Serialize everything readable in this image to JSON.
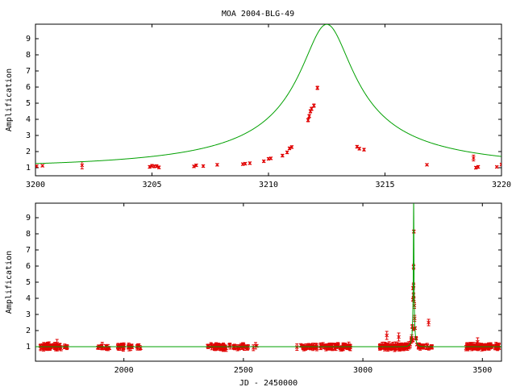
{
  "title": "MOA 2004-BLG-49",
  "colors": {
    "model": "#00a000",
    "data": "#e00000",
    "axes": "#000000"
  },
  "chart_data": [
    {
      "type": "scatter",
      "title": "MOA 2004-BLG-49",
      "xlabel": "",
      "ylabel": "Amplification",
      "xlim": [
        3200,
        3220
      ],
      "ylim": [
        0.5,
        9.9
      ],
      "xticks": [
        3200,
        3205,
        3210,
        3215,
        3220
      ],
      "yticks": [
        1,
        2,
        3,
        4,
        5,
        6,
        7,
        8,
        9
      ],
      "grid": false,
      "model": {
        "t0": 3212.5,
        "u0": 0.1015,
        "tE": 11.0
      },
      "points": [
        [
          3200.05,
          1.1,
          0.06
        ],
        [
          3200.3,
          1.12,
          0.06
        ],
        [
          3202.0,
          1.15,
          0.22
        ],
        [
          3204.9,
          1.05,
          0.08
        ],
        [
          3205.0,
          1.12,
          0.08
        ],
        [
          3205.1,
          1.08,
          0.08
        ],
        [
          3205.2,
          1.1,
          0.08
        ],
        [
          3205.3,
          1.02,
          0.08
        ],
        [
          3206.8,
          1.08,
          0.07
        ],
        [
          3206.9,
          1.15,
          0.07
        ],
        [
          3207.2,
          1.1,
          0.07
        ],
        [
          3207.8,
          1.18,
          0.07
        ],
        [
          3208.9,
          1.22,
          0.07
        ],
        [
          3209.0,
          1.25,
          0.07
        ],
        [
          3209.2,
          1.28,
          0.07
        ],
        [
          3209.8,
          1.4,
          0.07
        ],
        [
          3210.0,
          1.55,
          0.07
        ],
        [
          3210.1,
          1.58,
          0.07
        ],
        [
          3210.6,
          1.75,
          0.08
        ],
        [
          3210.8,
          1.95,
          0.08
        ],
        [
          3210.9,
          2.2,
          0.08
        ],
        [
          3211.0,
          2.28,
          0.08
        ],
        [
          3211.7,
          3.95,
          0.1
        ],
        [
          3211.75,
          4.2,
          0.1
        ],
        [
          3211.8,
          4.5,
          0.1
        ],
        [
          3211.85,
          4.65,
          0.1
        ],
        [
          3211.95,
          4.85,
          0.1
        ],
        [
          3212.1,
          5.95,
          0.1
        ],
        [
          3213.8,
          2.3,
          0.08
        ],
        [
          3213.9,
          2.18,
          0.08
        ],
        [
          3214.1,
          2.12,
          0.08
        ],
        [
          3216.8,
          1.18,
          0.06
        ],
        [
          3218.8,
          1.6,
          0.18
        ],
        [
          3218.9,
          1.0,
          0.08
        ],
        [
          3219.0,
          1.05,
          0.08
        ],
        [
          3219.8,
          1.05,
          0.06
        ],
        [
          3220.0,
          1.2,
          0.06
        ]
      ]
    },
    {
      "type": "scatter",
      "title": "",
      "xlabel": "JD - 2450000",
      "ylabel": "Amplification",
      "xlim": [
        1630,
        3580
      ],
      "ylim": [
        0.1,
        9.9
      ],
      "xticks": [
        2000,
        2500,
        3000,
        3500
      ],
      "yticks": [
        1,
        2,
        3,
        4,
        5,
        6,
        7,
        8,
        9
      ],
      "grid": false,
      "model": {
        "t0": 3212.5,
        "u0": 0.1015,
        "tE": 11.0
      },
      "clusters": [
        [
          1650,
          1740,
          50
        ],
        [
          1750,
          1770,
          4
        ],
        [
          1890,
          1940,
          14
        ],
        [
          1970,
          2010,
          12
        ],
        [
          2010,
          2075,
          14
        ],
        [
          2350,
          2430,
          40
        ],
        [
          2440,
          2520,
          22
        ],
        [
          2540,
          2560,
          3
        ],
        [
          2720,
          2950,
          90
        ],
        [
          3070,
          3180,
          70
        ],
        [
          3180,
          3290,
          50
        ],
        [
          3430,
          3570,
          90
        ]
      ],
      "extra_points": [
        [
          1720,
          1.2,
          0.25
        ],
        [
          3100,
          1.7,
          0.25
        ],
        [
          3150,
          1.6,
          0.25
        ],
        [
          3207,
          2.25,
          0.12
        ],
        [
          3209,
          1.4,
          0.1
        ],
        [
          3211,
          2.1,
          0.1
        ],
        [
          3211.8,
          4.2,
          0.15
        ],
        [
          3212,
          4.8,
          0.15
        ],
        [
          3212.1,
          5.95,
          0.15
        ],
        [
          3213,
          3.95,
          0.15
        ],
        [
          3275,
          2.5,
          0.2
        ],
        [
          3480,
          1.3,
          0.25
        ]
      ]
    }
  ]
}
